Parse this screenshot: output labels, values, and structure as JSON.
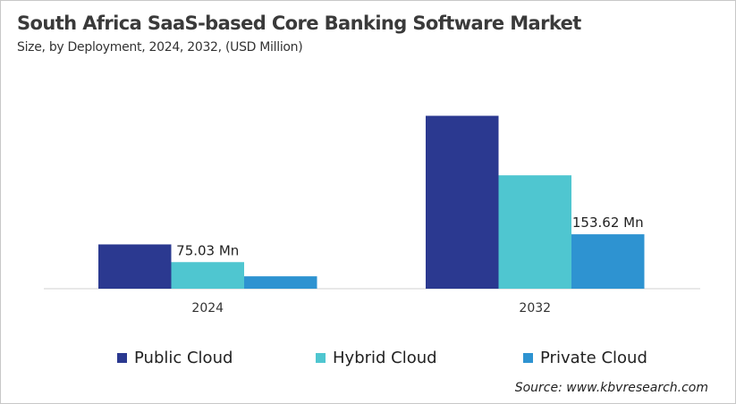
{
  "chart_data": {
    "type": "bar",
    "title": "South Africa SaaS-based Core Banking Software Market",
    "subtitle": "Size, by Deployment, 2024, 2032, (USD Million)",
    "categories": [
      "2024",
      "2032"
    ],
    "series": [
      {
        "name": "Public Cloud",
        "values": [
          125,
          488
        ],
        "color": "#2b3990"
      },
      {
        "name": "Hybrid Cloud",
        "values": [
          75.03,
          320
        ],
        "color": "#4fc6d0"
      },
      {
        "name": "Private Cloud",
        "values": [
          35,
          153.62
        ],
        "color": "#2e93d1"
      }
    ],
    "data_labels": [
      {
        "series": 1,
        "category": 0,
        "text": "75.03 Mn"
      },
      {
        "series": 2,
        "category": 1,
        "text": "153.62 Mn"
      }
    ],
    "ylim": [
      0,
      560
    ],
    "grid": false,
    "legend": "bottom",
    "source": "Source: www.kbvresearch.com"
  }
}
